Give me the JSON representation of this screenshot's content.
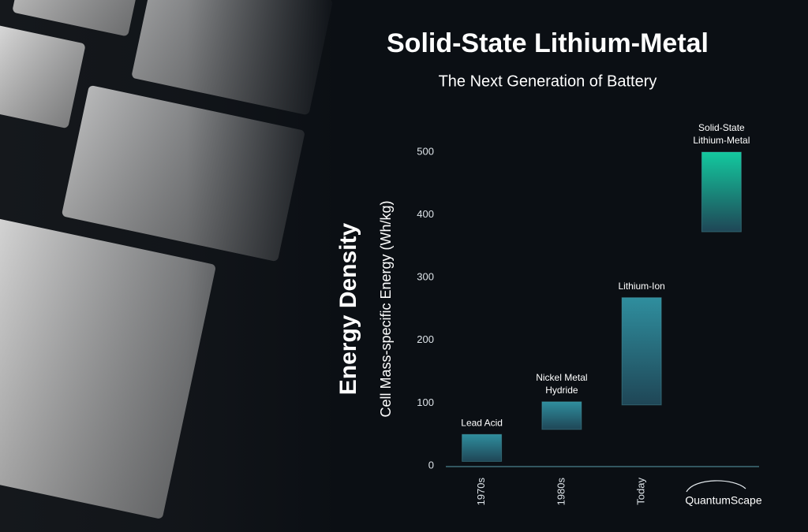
{
  "chart_data": {
    "type": "floating-bar",
    "title": "Solid-State Lithium-Metal",
    "subtitle": "The Next Generation of Battery",
    "ylabel": "Energy Density",
    "ylabel_sub": "Cell Mass-specific Energy (Wh/kg)",
    "categories": [
      "1970s",
      "1980s",
      "Today",
      null
    ],
    "labels": [
      [
        "Lead Acid"
      ],
      [
        "Nickel Metal",
        "Hydride"
      ],
      [
        "Lithium-Ion"
      ],
      [
        "Solid-State",
        "Lithium-Metal"
      ]
    ],
    "low": [
      7,
      58,
      97,
      373
    ],
    "high": [
      50,
      102,
      268,
      500
    ],
    "colors": [
      "#2f8e9e",
      "#2f8e9e",
      "#2f8e9e",
      "#13c99f"
    ],
    "ylim": [
      0,
      500
    ],
    "yticks": [
      0,
      100,
      200,
      300,
      400,
      500
    ],
    "logo": "QuantumScape"
  }
}
